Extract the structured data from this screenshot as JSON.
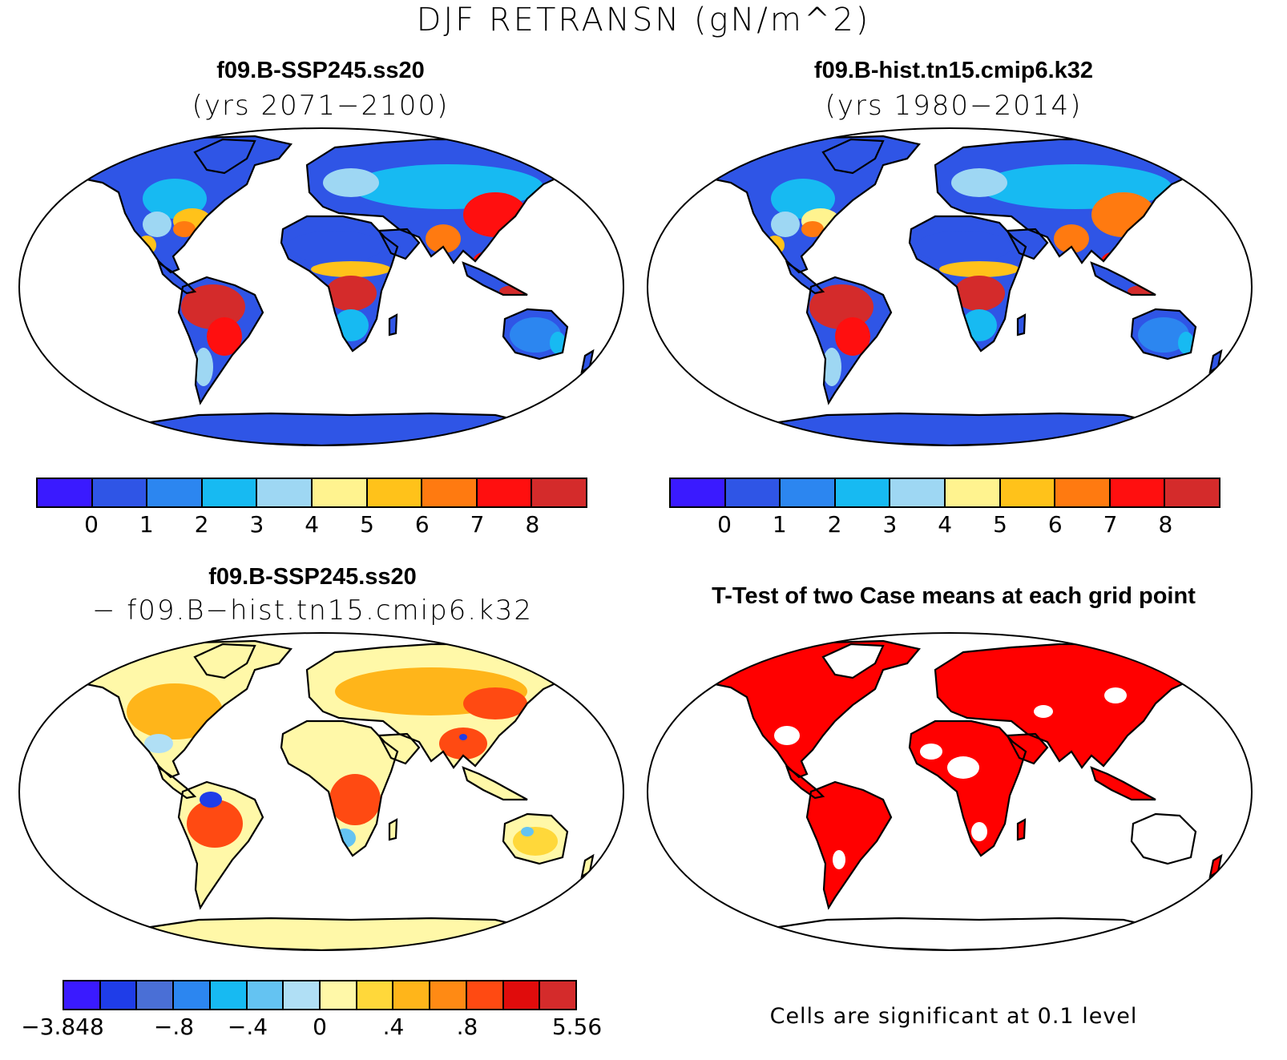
{
  "figure": {
    "title": "DJF RETRANSN (gN/m^2)"
  },
  "colors": {
    "seq": [
      "#3a1aff",
      "#2f55e6",
      "#2c86f0",
      "#17baf2",
      "#9ed7f3",
      "#fff38f",
      "#ffc21a",
      "#ff7a10",
      "#ff0f0f",
      "#d42b2b"
    ],
    "diff": [
      "#3a1aff",
      "#1f3de8",
      "#4a6fd6",
      "#2c86f0",
      "#17baf2",
      "#64c3f2",
      "#b0dff5",
      "#fff8a8",
      "#ffd83a",
      "#ffb51a",
      "#ff8a14",
      "#ff4a12",
      "#e00c0c",
      "#d42b2b"
    ],
    "sig": "#ff0000",
    "land_line": "#000000"
  },
  "panels": {
    "p1": {
      "title": "f09.B-SSP245.ss20",
      "subtitle": "(yrs 2071−2100)",
      "ticks": [
        "0",
        "1",
        "2",
        "3",
        "4",
        "5",
        "6",
        "7",
        "8"
      ]
    },
    "p2": {
      "title": "f09.B-hist.tn15.cmip6.k32",
      "subtitle": "(yrs 1980−2014)",
      "ticks": [
        "0",
        "1",
        "2",
        "3",
        "4",
        "5",
        "6",
        "7",
        "8"
      ]
    },
    "p3": {
      "title": "f09.B-SSP245.ss20",
      "subtitle": "− f09.B−hist.tn15.cmip6.k32",
      "ticks": [
        "−3.848",
        "−.8",
        "−.4",
        "0",
        ".4",
        ".8",
        "5.56"
      ]
    },
    "p4": {
      "title": "T-Test of two Case means at each grid point",
      "note": "Cells are significant at 0.1 level"
    }
  }
}
